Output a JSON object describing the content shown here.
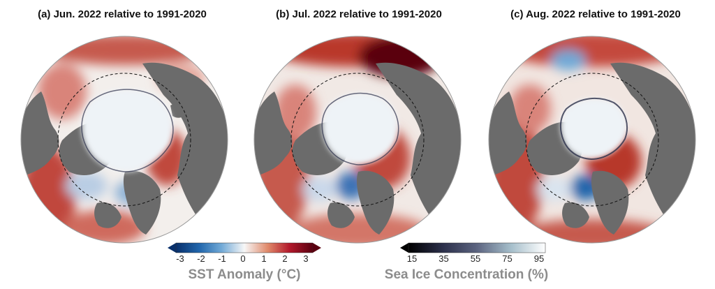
{
  "panels": [
    {
      "id": "a",
      "title": "(a) Jun. 2022 relative to 1991-2020"
    },
    {
      "id": "b",
      "title": "(b) Jul. 2022 relative to 1991-2020"
    },
    {
      "id": "c",
      "title": "(c) Aug. 2022 relative to 1991-2020"
    }
  ],
  "colorbars": {
    "sst": {
      "label": "SST Anomaly (°C)",
      "ticks": [
        "-3",
        "-2",
        "-1",
        "0",
        "1",
        "2",
        "3"
      ],
      "colors": [
        "#08306b",
        "#2166ac",
        "#6fa8d6",
        "#f7f7f7",
        "#e08a6b",
        "#b2182b",
        "#5a0010"
      ],
      "extend": "both"
    },
    "ice": {
      "label": "Sea Ice Concentration (%)",
      "ticks": [
        "15",
        "35",
        "55",
        "75",
        "95"
      ],
      "colors": [
        "#000000",
        "#2b2f4a",
        "#5c6480",
        "#a6bfcb",
        "#ffffff"
      ],
      "extend": "min"
    }
  },
  "colors": {
    "land": "#6b6b6b",
    "ice": "#eef3f7",
    "warm_ocean": "#c44a3e",
    "cool_ocean": "#f3f0ee",
    "cold_anomaly": "#3e73b6"
  }
}
